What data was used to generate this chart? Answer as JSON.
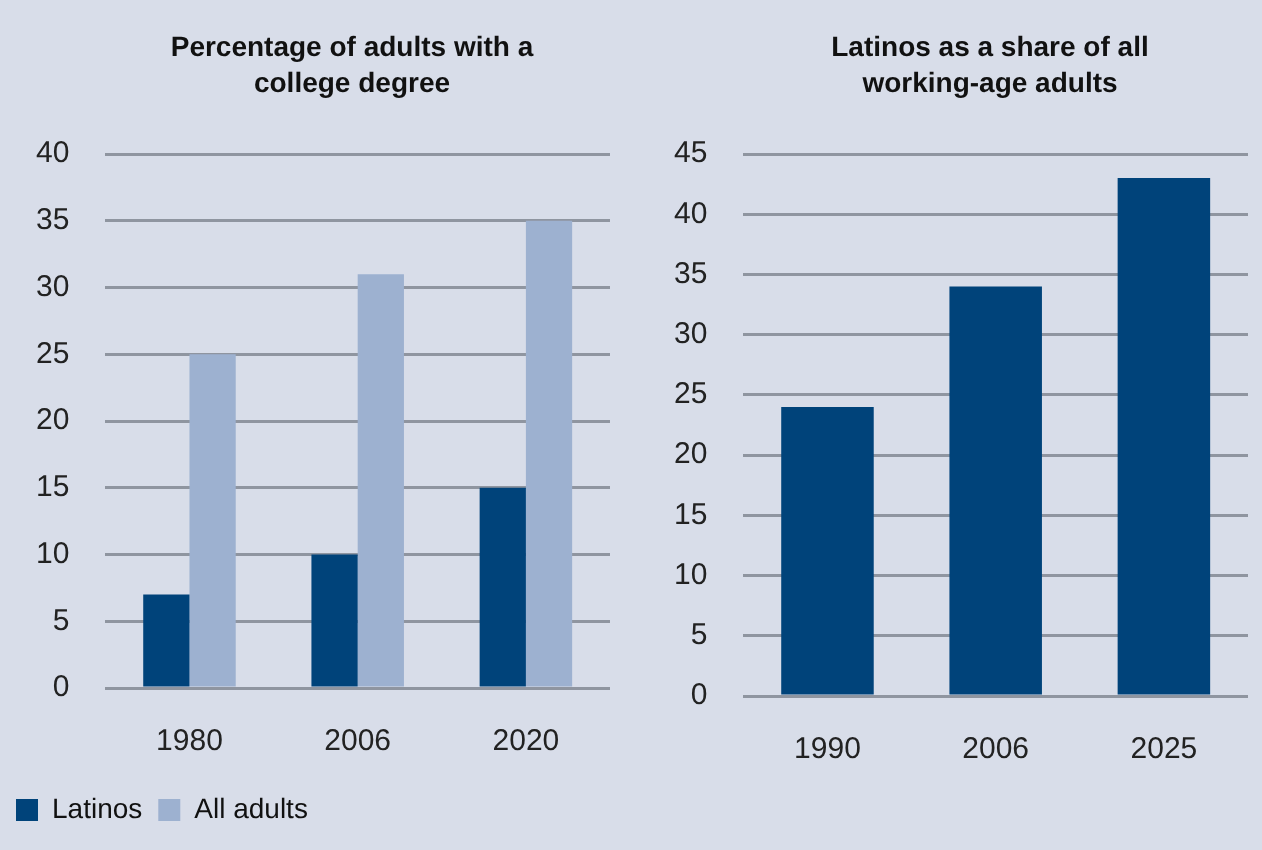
{
  "chart_data": [
    {
      "type": "bar",
      "title": "Percentage of adults with a college degree",
      "categories": [
        "1980",
        "2006",
        "2020"
      ],
      "series": [
        {
          "name": "Latinos",
          "color": "#00437a",
          "values": [
            7,
            10,
            15
          ]
        },
        {
          "name": "All adults",
          "color": "#9db1d0",
          "values": [
            25,
            31,
            35
          ]
        }
      ],
      "ylim": [
        0,
        40
      ],
      "yticks": [
        0,
        5,
        10,
        15,
        20,
        25,
        30,
        35,
        40
      ],
      "grid": "y",
      "legend": "bottom"
    },
    {
      "type": "bar",
      "title": "Latinos as a share of all working-age adults",
      "categories": [
        "1990",
        "2006",
        "2025"
      ],
      "series": [
        {
          "color": "#00437a",
          "values": [
            24,
            34,
            43
          ]
        }
      ],
      "ylim": [
        0,
        45
      ],
      "yticks": [
        0,
        5,
        10,
        15,
        20,
        25,
        30,
        35,
        40,
        45
      ],
      "grid": "y"
    }
  ]
}
